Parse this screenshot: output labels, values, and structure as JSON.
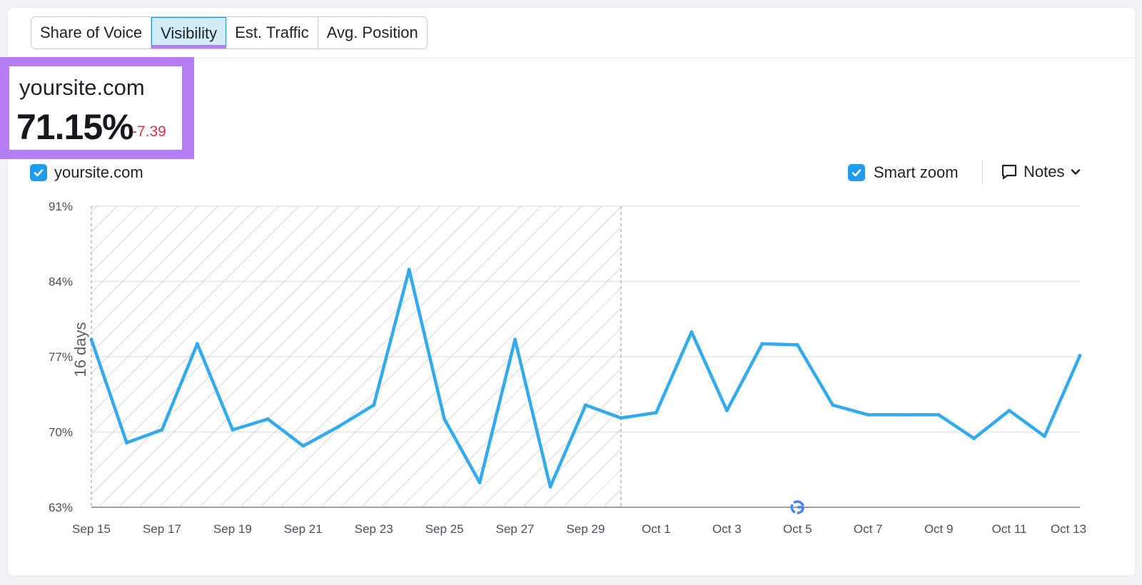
{
  "tabs": [
    {
      "label": "Share of Voice",
      "active": false
    },
    {
      "label": "Visibility",
      "active": true
    },
    {
      "label": "Est. Traffic",
      "active": false
    },
    {
      "label": "Avg. Position",
      "active": false
    }
  ],
  "summary": {
    "domain": "yoursite.com",
    "value": "71.15%",
    "delta": "-7.39"
  },
  "legend": {
    "label": "yoursite.com",
    "checked": true
  },
  "controls": {
    "smart_zoom_label": "Smart zoom",
    "smart_zoom_checked": true,
    "notes_label": "Notes"
  },
  "colors": {
    "accent": "#b57cf4",
    "series": "#33aaee",
    "delta_negative": "#d6334c",
    "checkbox": "#1f9bf0"
  },
  "chart_data": {
    "type": "line",
    "ylim": [
      63,
      91
    ],
    "yticks": [
      63,
      70,
      77,
      84,
      91
    ],
    "ytick_labels": [
      "63%",
      "70%",
      "77%",
      "84%",
      "91%"
    ],
    "xtick_labels": [
      "Sep 15",
      "Sep 17",
      "Sep 19",
      "Sep 21",
      "Sep 23",
      "Sep 25",
      "Sep 27",
      "Sep 29",
      "Oct 1",
      "Oct 3",
      "Oct 5",
      "Oct 7",
      "Oct 9",
      "Oct 11",
      "Oct 13"
    ],
    "x": [
      "Sep 15",
      "Sep 16",
      "Sep 17",
      "Sep 18",
      "Sep 19",
      "Sep 20",
      "Sep 21",
      "Sep 22",
      "Sep 23",
      "Sep 24",
      "Sep 25",
      "Sep 26",
      "Sep 27",
      "Sep 28",
      "Sep 29",
      "Sep 30",
      "Oct 1",
      "Oct 2",
      "Oct 3",
      "Oct 4",
      "Oct 5",
      "Oct 6",
      "Oct 7",
      "Oct 8",
      "Oct 9",
      "Oct 10",
      "Oct 11",
      "Oct 12",
      "Oct 13"
    ],
    "series": [
      {
        "name": "yoursite.com",
        "values": [
          78.6,
          69.0,
          70.2,
          78.2,
          70.2,
          71.2,
          68.7,
          70.5,
          72.5,
          85.1,
          71.2,
          65.3,
          78.6,
          64.9,
          72.5,
          71.3,
          71.8,
          79.3,
          72.0,
          78.2,
          78.1,
          72.5,
          71.6,
          71.6,
          71.6,
          69.4,
          72.0,
          69.6,
          77.1
        ]
      }
    ],
    "shaded_region": {
      "from": "Sep 15",
      "to": "Sep 30",
      "label": "16 days"
    },
    "annotation_marker": {
      "at": "Oct 5",
      "icon": "google-icon"
    },
    "grid": true
  }
}
